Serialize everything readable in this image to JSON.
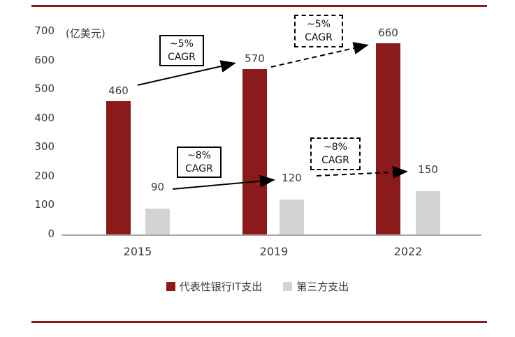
{
  "colors": {
    "rule": "#8b1a1a",
    "bank_series": "#8b1a1a",
    "third_party_series": "#d3d3d3"
  },
  "chart_data": {
    "type": "bar",
    "title": "",
    "ylabel": "(亿美元)",
    "xlabel": "",
    "categories": [
      "2015",
      "2019",
      "2022"
    ],
    "series": [
      {
        "name": "代表性银行IT支出",
        "color": "#8b1a1a",
        "values": [
          460,
          570,
          660
        ]
      },
      {
        "name": "第三方支出",
        "color": "#d3d3d3",
        "values": [
          90,
          120,
          150
        ]
      }
    ],
    "yticks": [
      0,
      100,
      200,
      300,
      400,
      500,
      600,
      700
    ],
    "ylim": [
      0,
      700
    ],
    "grid": false,
    "legend_position": "bottom",
    "annotations": [
      {
        "rate": "~5%",
        "label": "CAGR",
        "style": "solid",
        "span": "2015-2019"
      },
      {
        "rate": "~5%",
        "label": "CAGR",
        "style": "dashed",
        "span": "2019-2022"
      },
      {
        "rate": "~8%",
        "label": "CAGR",
        "style": "solid",
        "span": "2015-2019"
      },
      {
        "rate": "~8%",
        "label": "CAGR",
        "style": "dashed",
        "span": "2019-2022"
      }
    ]
  }
}
